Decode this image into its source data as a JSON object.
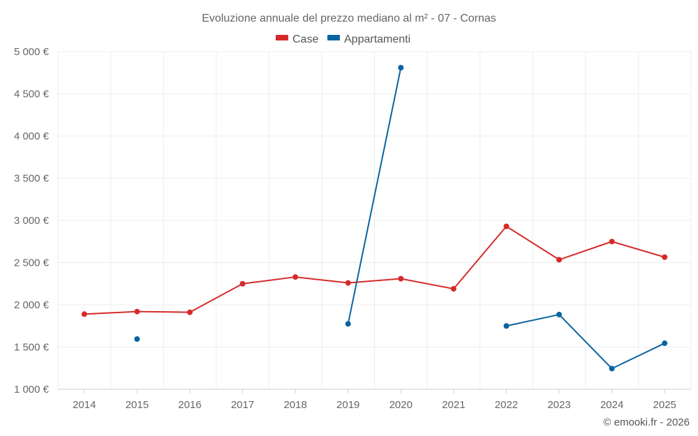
{
  "chart_data": {
    "type": "line",
    "title": "Evoluzione annuale del prezzo mediano al m² - 07 - Cornas",
    "x": [
      2014,
      2015,
      2016,
      2017,
      2018,
      2019,
      2020,
      2021,
      2022,
      2023,
      2024,
      2025
    ],
    "x_tick_labels": [
      "2014",
      "2015",
      "2016",
      "2017",
      "2018",
      "2019",
      "2020",
      "2021",
      "2022",
      "2023",
      "2024",
      "2025"
    ],
    "ylim": [
      1000,
      5000
    ],
    "y_ticks": [
      1000,
      1500,
      2000,
      2500,
      3000,
      3500,
      4000,
      4500,
      5000
    ],
    "y_tick_labels": [
      "1 000 €",
      "1 500 €",
      "2 000 €",
      "2 500 €",
      "3 000 €",
      "3 500 €",
      "4 000 €",
      "4 500 €",
      "5 000 €"
    ],
    "grid": true,
    "legend_position": "top-center",
    "series": [
      {
        "name": "Case",
        "color": "#d62a2a",
        "values": [
          1890,
          1920,
          1912,
          2250,
          2330,
          2260,
          2310,
          2190,
          2930,
          2535,
          2750,
          2565
        ]
      },
      {
        "name": "Appartamenti",
        "color": "#0a64a0",
        "values": [
          null,
          1595,
          null,
          null,
          null,
          1775,
          4810,
          null,
          1750,
          1885,
          1245,
          1545
        ]
      }
    ],
    "credit": "© emooki.fr - 2026"
  }
}
